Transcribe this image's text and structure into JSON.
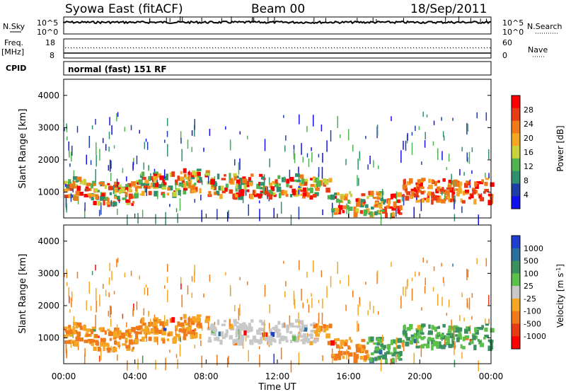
{
  "header": {
    "station": "Syowa East (fitACF)",
    "beam": "Beam 00",
    "date": "18/Sep/2011"
  },
  "noise_panel": {
    "left_label": "N.Sky",
    "right_label": "N.Search",
    "left_ticks": [
      "10^5",
      "10^0"
    ],
    "right_ticks": [
      "10^5",
      "10^0"
    ]
  },
  "freq_panel": {
    "left_label_line1": "Freq.",
    "left_label_line2": "[MHz]",
    "right_label": "Nave",
    "left_ticks": [
      "18",
      "8"
    ],
    "right_ticks": [
      "60",
      "0"
    ]
  },
  "cpid_panel": {
    "label": "CPID",
    "mode_text": "normal (fast) 151 RF"
  },
  "colors": {
    "power_scale": [
      "#1010f0",
      "#1f3fa8",
      "#2f8f6f",
      "#4fb34f",
      "#c8d23a",
      "#f5a623",
      "#f07a1a",
      "#e83a14",
      "#ff0000"
    ],
    "velocity_scale": [
      "#1f3fd0",
      "#2a6fa0",
      "#3c8f5f",
      "#5cc04a",
      "#c8c8c8",
      "#f5a623",
      "#f07a1a",
      "#e83a14",
      "#ff0000"
    ]
  },
  "chart_data": [
    {
      "type": "heatmap",
      "name": "power",
      "ylabel": "Slant Range [km]",
      "yticks": [
        "1000",
        "2000",
        "3000",
        "4000"
      ],
      "ylim": [
        200,
        4500
      ],
      "xlim_hours": [
        0,
        24
      ],
      "colorbar": {
        "label": "Power [dB]",
        "ticks": [
          "4",
          "8",
          "12",
          "16",
          "20",
          "24",
          "28"
        ],
        "range": [
          0,
          30
        ]
      }
    },
    {
      "type": "heatmap",
      "name": "velocity",
      "ylabel": "Slant Range [km]",
      "yticks": [
        "1000",
        "2000",
        "3000",
        "4000"
      ],
      "ylim": [
        200,
        4500
      ],
      "xlim_hours": [
        0,
        24
      ],
      "xlabel": "Time UT",
      "xticks": [
        "00:00",
        "04:00",
        "08:00",
        "12:00",
        "16:00",
        "20:00",
        "00:00"
      ],
      "colorbar": {
        "label": "Velocity [m s^-1]",
        "ticks": [
          "1000",
          "500",
          "100",
          "25",
          "-25",
          "-100",
          "-500",
          "-1000"
        ]
      }
    }
  ]
}
